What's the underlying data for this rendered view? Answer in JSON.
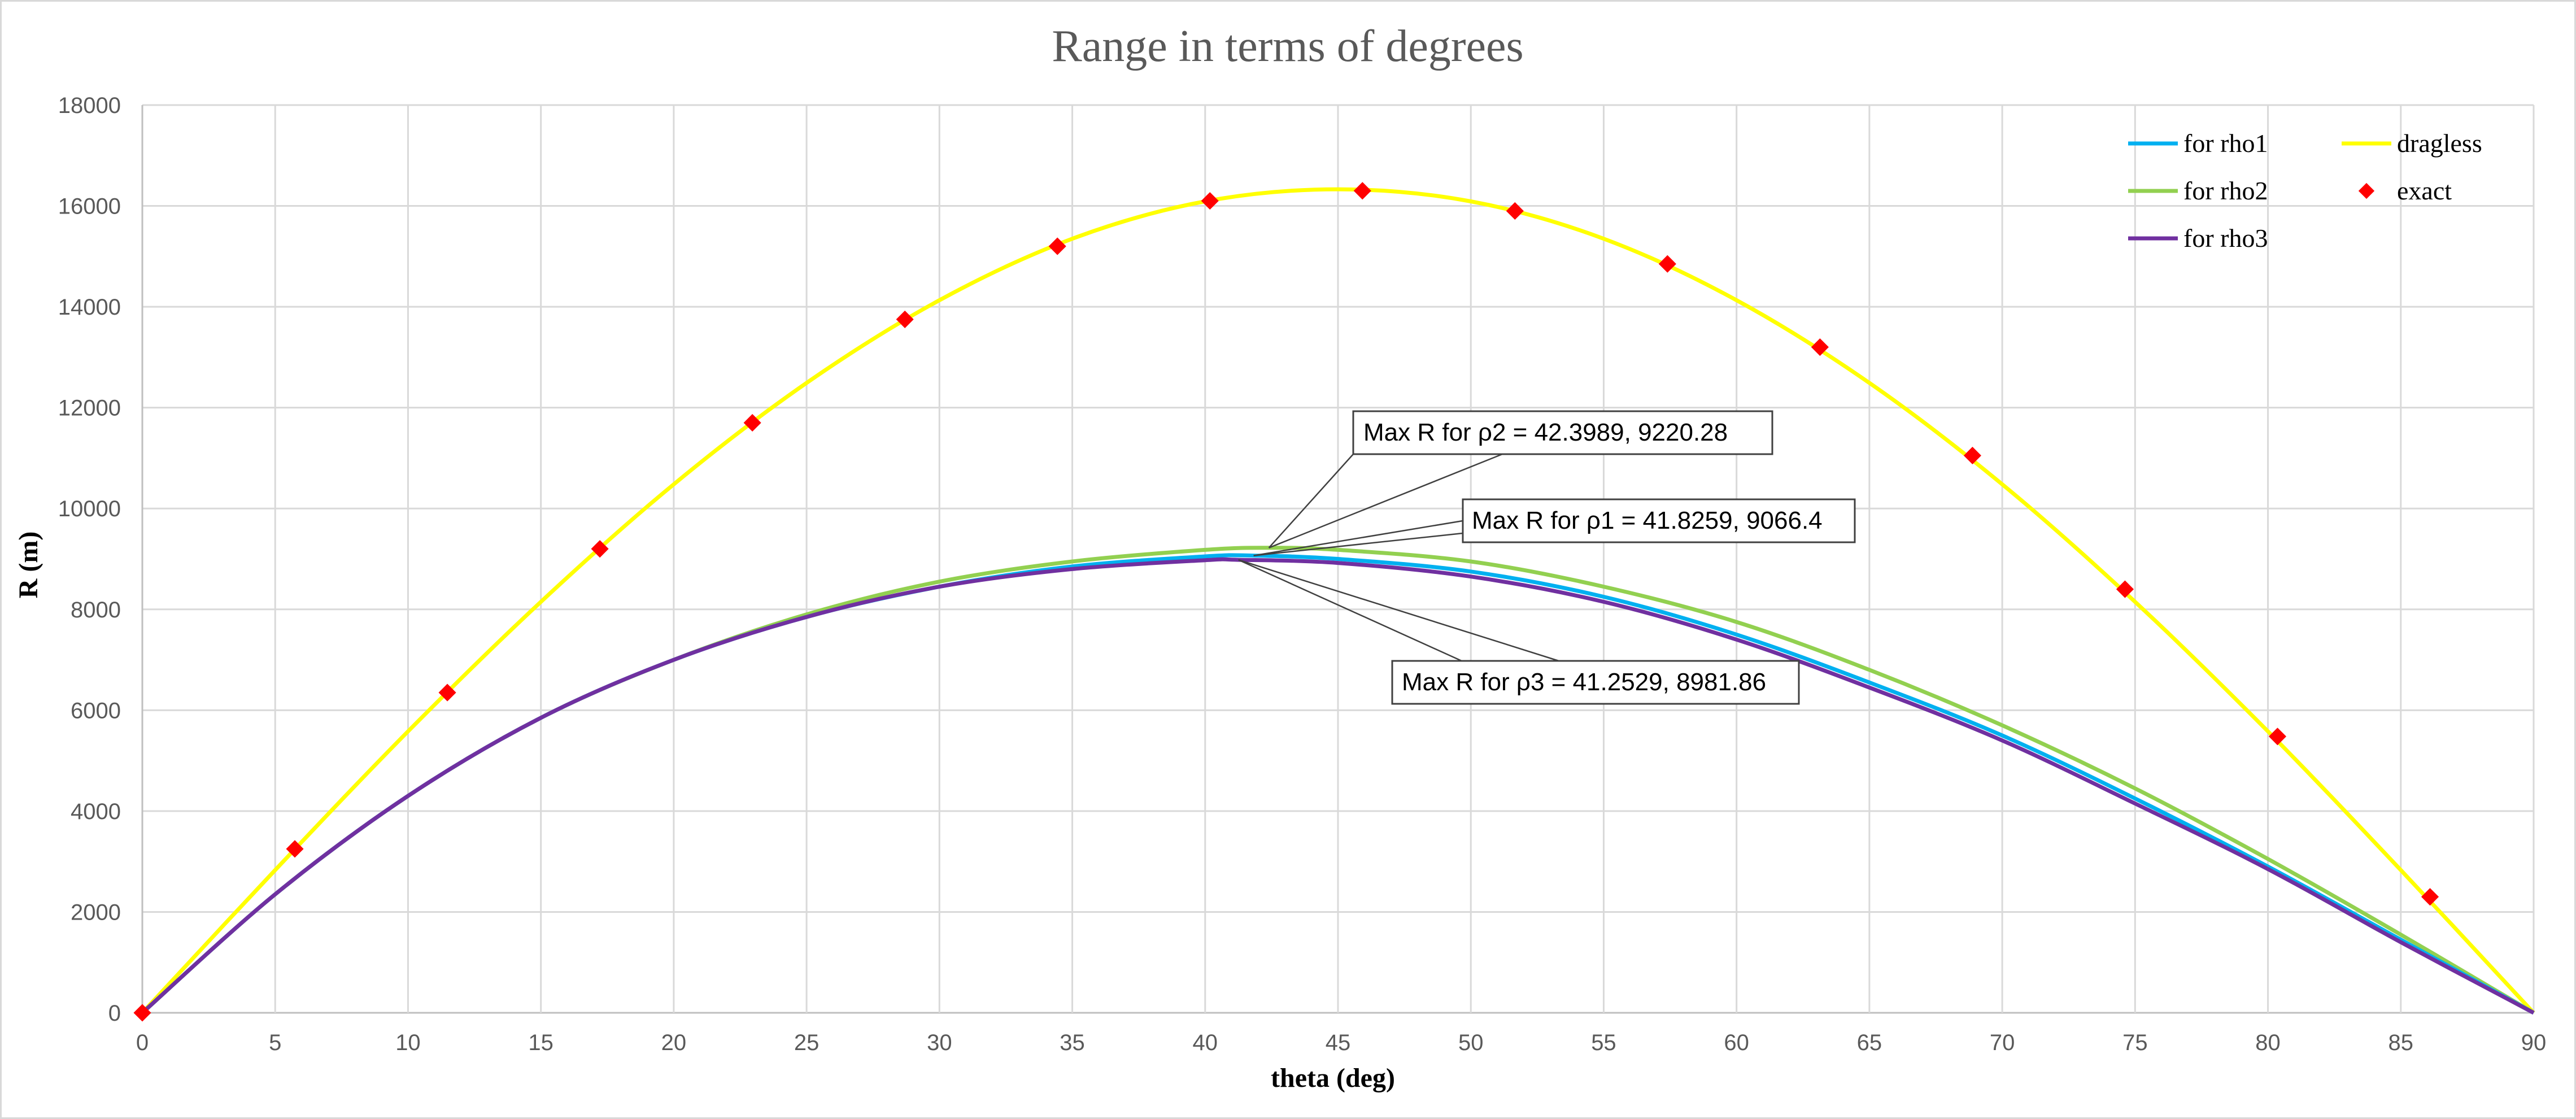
{
  "chart_data": {
    "type": "line",
    "title": "Range in terms of degrees",
    "xlabel": "theta (deg)",
    "ylabel": "R (m)",
    "xlim": [
      0,
      90
    ],
    "ylim": [
      0,
      18000
    ],
    "xticks": [
      "0",
      "5",
      "10",
      "15",
      "20",
      "25",
      "30",
      "35",
      "40",
      "45",
      "50",
      "55",
      "60",
      "65",
      "70",
      "75",
      "80",
      "85",
      "90"
    ],
    "yticks": [
      "0",
      "2000",
      "4000",
      "6000",
      "8000",
      "10000",
      "12000",
      "14000",
      "16000",
      "18000"
    ],
    "grid": true,
    "legend_position": "top-right",
    "series": [
      {
        "name": "for rho1",
        "kind": "line",
        "color": "#00b0f0",
        "x": [
          0,
          5,
          10,
          15,
          20,
          25,
          30,
          35,
          40,
          41.8259,
          45,
          50,
          55,
          60,
          65,
          70,
          75,
          80,
          85,
          90
        ],
        "y": [
          0,
          2350,
          4300,
          5850,
          7000,
          7850,
          8450,
          8850,
          9050,
          9066.4,
          9000,
          8750,
          8250,
          7500,
          6550,
          5500,
          4250,
          2900,
          1450,
          0
        ]
      },
      {
        "name": "for rho2",
        "kind": "line",
        "color": "#92d050",
        "x": [
          0,
          5,
          10,
          15,
          20,
          25,
          30,
          35,
          40,
          42.3989,
          45,
          50,
          55,
          60,
          65,
          70,
          75,
          80,
          85,
          90
        ],
        "y": [
          0,
          2350,
          4300,
          5850,
          7000,
          7900,
          8550,
          8950,
          9180,
          9220.28,
          9180,
          8950,
          8450,
          7750,
          6800,
          5700,
          4450,
          3050,
          1550,
          0
        ]
      },
      {
        "name": "for rho3",
        "kind": "line",
        "color": "#7030a0",
        "x": [
          0,
          5,
          10,
          15,
          20,
          25,
          30,
          35,
          40,
          41.2529,
          45,
          50,
          55,
          60,
          65,
          70,
          75,
          80,
          85,
          90
        ],
        "y": [
          0,
          2350,
          4300,
          5850,
          7000,
          7850,
          8450,
          8800,
          8975,
          8981.86,
          8920,
          8650,
          8150,
          7400,
          6450,
          5400,
          4150,
          2850,
          1400,
          0
        ]
      },
      {
        "name": "dragless",
        "kind": "line",
        "color": "#ffff00",
        "x": [
          0,
          5,
          10,
          15,
          20,
          25,
          30,
          35,
          40,
          45,
          50,
          55,
          60,
          65,
          70,
          75,
          80,
          85,
          90
        ],
        "y": [
          0,
          2830,
          5580,
          8150,
          10480,
          12490,
          14130,
          15350,
          16090,
          16330,
          16090,
          15350,
          14130,
          12490,
          10480,
          8150,
          5580,
          2830,
          0
        ]
      },
      {
        "name": "exact",
        "kind": "markers",
        "color": "#ff0000",
        "x": [
          0,
          5.74,
          11.48,
          17.22,
          22.96,
          28.7,
          34.44,
          40.18,
          45.92,
          51.66,
          57.4,
          63.14,
          68.88,
          74.62,
          80.36,
          86.1
        ],
        "y": [
          0,
          3250,
          6350,
          9200,
          11700,
          13750,
          15200,
          16100,
          16300,
          15900,
          14850,
          13200,
          11050,
          8400,
          5480,
          2300
        ]
      }
    ],
    "annotations": [
      {
        "text": "Max R for ρ2  =  42.3989, 9220.28",
        "x": 42.3989,
        "y": 9220.28
      },
      {
        "text": "Max R for ρ1  =  41.8259, 9066.4",
        "x": 41.8259,
        "y": 9066.4
      },
      {
        "text": "Max R for ρ3  =  41.2529, 8981.86",
        "x": 41.2529,
        "y": 8981.86
      }
    ]
  }
}
